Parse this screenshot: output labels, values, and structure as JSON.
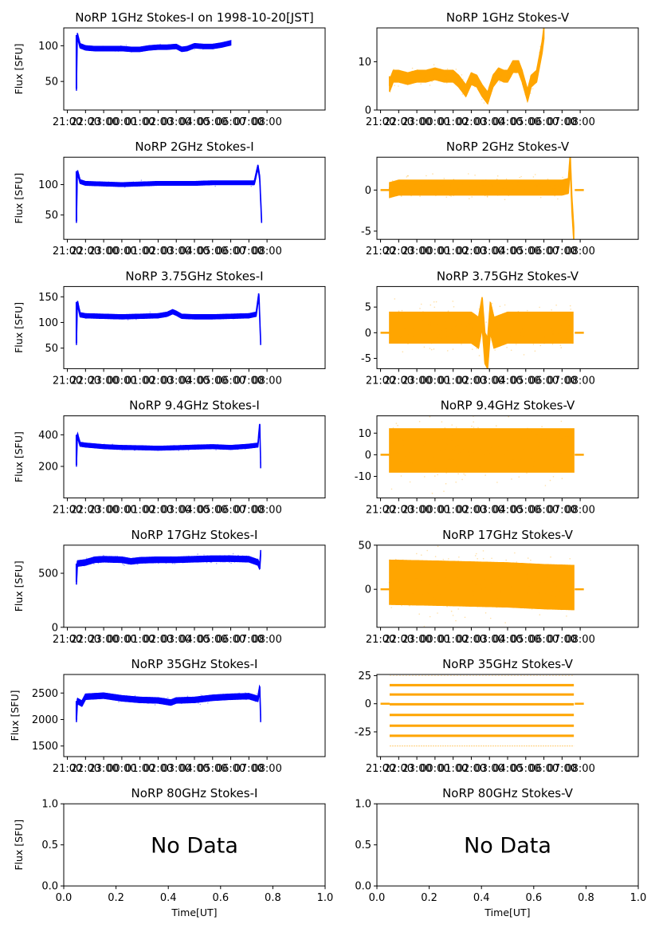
{
  "figure": {
    "date_label": "1998-10-20[JST]",
    "ylabel": "Flux [SFU]",
    "xlabel": "Time[UT]",
    "no_data_text": "No Data",
    "colors": {
      "stokes_i": "#0000ff",
      "stokes_v": "#ffa500"
    }
  },
  "chart_data": [
    {
      "type": "scatter",
      "panel": "1GHz-I",
      "title": "NoRP 1GHz Stokes-I on 1998-10-20[JST]",
      "ylabel": "Flux [SFU]",
      "xlabel": "",
      "xticks": [
        "21:00",
        "22:00",
        "23:00",
        "00:00",
        "01:00",
        "02:00",
        "03:00",
        "04:00",
        "05:00",
        "06:00",
        "07:00",
        "08:00"
      ],
      "xlim_hours": [
        -3.2,
        11.2
      ],
      "ylim": [
        10,
        125
      ],
      "yticks": [
        50,
        100
      ],
      "series": [
        {
          "name": "Stokes-I",
          "color": "#0000ff",
          "x_hours": [
            -2.5,
            -2.45,
            -2.3,
            -2.0,
            -1.5,
            -1.0,
            -0.5,
            0.0,
            0.5,
            1.0,
            1.5,
            2.0,
            2.5,
            3.0,
            3.3,
            3.6,
            4.0,
            4.5,
            5.0,
            5.5,
            6.0
          ],
          "y": [
            40,
            115,
            100,
            97,
            96,
            96,
            96,
            96,
            95,
            95,
            97,
            98,
            98,
            99,
            95,
            96,
            100,
            99,
            99,
            101,
            104
          ],
          "spread": 3
        }
      ]
    },
    {
      "type": "scatter",
      "panel": "1GHz-V",
      "title": "NoRP 1GHz Stokes-V",
      "ylabel": "",
      "xlabel": "",
      "xticks": [
        "21:00",
        "22:00",
        "23:00",
        "00:00",
        "01:00",
        "02:00",
        "03:00",
        "04:00",
        "05:00",
        "06:00",
        "07:00",
        "08:00"
      ],
      "xlim_hours": [
        -3.2,
        11.2
      ],
      "ylim": [
        0,
        17
      ],
      "yticks": [
        0,
        10
      ],
      "series": [
        {
          "name": "Stokes-V",
          "color": "#ffa500",
          "x_hours": [
            -2.5,
            -2.3,
            -2.0,
            -1.5,
            -1.0,
            -0.5,
            0.0,
            0.5,
            1.0,
            1.3,
            1.7,
            2.0,
            2.3,
            2.6,
            2.9,
            3.2,
            3.5,
            3.8,
            4.0,
            4.3,
            4.6,
            4.8,
            5.1,
            5.3,
            5.6,
            5.9,
            6.0
          ],
          "y": [
            5,
            7,
            7,
            6.5,
            7,
            7,
            7.5,
            7,
            7,
            6,
            4,
            6.5,
            6,
            4,
            2.5,
            6,
            7.5,
            7,
            7,
            9,
            9,
            7,
            3,
            6,
            7,
            13,
            16
          ],
          "spread": 1.2
        }
      ]
    },
    {
      "type": "scatter",
      "panel": "2GHz-I",
      "title": "NoRP 2GHz Stokes-I",
      "ylabel": "Flux [SFU]",
      "xlabel": "",
      "xticks": [
        "21:00",
        "22:00",
        "23:00",
        "00:00",
        "01:00",
        "02:00",
        "03:00",
        "04:00",
        "05:00",
        "06:00",
        "07:00",
        "08:00"
      ],
      "xlim_hours": [
        -3.2,
        11.2
      ],
      "ylim": [
        10,
        145
      ],
      "yticks": [
        50,
        100
      ],
      "series": [
        {
          "name": "Stokes-I",
          "color": "#0000ff",
          "x_hours": [
            -2.5,
            -2.45,
            -2.3,
            -2.0,
            -1.0,
            0.0,
            1.0,
            2.0,
            3.0,
            4.0,
            5.0,
            6.0,
            7.0,
            7.3,
            7.5,
            7.6,
            7.7
          ],
          "y": [
            40,
            122,
            105,
            102,
            101,
            100,
            101,
            102,
            102,
            102,
            103,
            103,
            103,
            103,
            130,
            110,
            40
          ],
          "spread": 3
        }
      ]
    },
    {
      "type": "scatter",
      "panel": "2GHz-V",
      "title": "NoRP 2GHz Stokes-V",
      "ylabel": "",
      "xlabel": "",
      "xticks": [
        "21:00",
        "22:00",
        "23:00",
        "00:00",
        "01:00",
        "02:00",
        "03:00",
        "04:00",
        "05:00",
        "06:00",
        "07:00",
        "08:00"
      ],
      "xlim_hours": [
        -3.2,
        11.2
      ],
      "ylim": [
        -6,
        4
      ],
      "yticks": [
        -5,
        0
      ],
      "series": [
        {
          "name": "Stokes-V",
          "color": "#ffa500",
          "x_hours": [
            -2.5,
            -2.0,
            -1.0,
            0.0,
            1.0,
            2.0,
            3.0,
            4.0,
            5.0,
            6.0,
            7.0,
            7.35,
            7.45,
            7.55,
            7.65
          ],
          "y": [
            0,
            0.3,
            0.3,
            0.3,
            0.3,
            0.3,
            0.3,
            0.3,
            0.3,
            0.3,
            0.3,
            0.5,
            3.5,
            -2,
            -5.5
          ],
          "spread": 0.9,
          "zero_segments": [
            [
              -3.0,
              -2.5
            ],
            [
              7.7,
              8.2
            ]
          ]
        }
      ]
    },
    {
      "type": "scatter",
      "panel": "3.75GHz-I",
      "title": "NoRP 3.75GHz Stokes-I",
      "ylabel": "Flux [SFU]",
      "xlabel": "",
      "xticks": [
        "21:00",
        "22:00",
        "23:00",
        "00:00",
        "01:00",
        "02:00",
        "03:00",
        "04:00",
        "05:00",
        "06:00",
        "07:00",
        "08:00"
      ],
      "xlim_hours": [
        -3.2,
        11.2
      ],
      "ylim": [
        10,
        170
      ],
      "yticks": [
        50,
        100,
        150
      ],
      "series": [
        {
          "name": "Stokes-I",
          "color": "#0000ff",
          "x_hours": [
            -2.5,
            -2.45,
            -2.3,
            -2.0,
            -1.0,
            0.0,
            1.0,
            2.0,
            2.5,
            2.8,
            3.0,
            3.3,
            4.0,
            5.0,
            6.0,
            7.0,
            7.4,
            7.55,
            7.65
          ],
          "y": [
            60,
            140,
            115,
            113,
            112,
            111,
            112,
            113,
            116,
            121,
            118,
            112,
            111,
            111,
            112,
            113,
            116,
            155,
            60
          ],
          "spread": 4
        }
      ]
    },
    {
      "type": "scatter",
      "panel": "3.75GHz-V",
      "title": "NoRP 3.75GHz Stokes-V",
      "ylabel": "",
      "xlabel": "",
      "xticks": [
        "21:00",
        "22:00",
        "23:00",
        "00:00",
        "01:00",
        "02:00",
        "03:00",
        "04:00",
        "05:00",
        "06:00",
        "07:00",
        "08:00"
      ],
      "xlim_hours": [
        -3.2,
        11.2
      ],
      "ylim": [
        -7,
        9
      ],
      "yticks": [
        -5,
        0,
        5
      ],
      "series": [
        {
          "name": "Stokes-V",
          "color": "#ffa500",
          "x_hours": [
            -2.5,
            -1.0,
            0.0,
            1.0,
            2.0,
            2.4,
            2.6,
            2.75,
            2.9,
            3.05,
            3.25,
            4.0,
            5.0,
            6.0,
            7.0,
            7.6
          ],
          "y": [
            1,
            1,
            1,
            1,
            1,
            0,
            4,
            -3,
            -4,
            3,
            0,
            1,
            1,
            1,
            1,
            1
          ],
          "spread": 3,
          "zero_segments": [
            [
              -3.0,
              -2.5
            ],
            [
              7.7,
              8.2
            ]
          ]
        }
      ]
    },
    {
      "type": "scatter",
      "panel": "9.4GHz-I",
      "title": "NoRP 9.4GHz Stokes-I",
      "ylabel": "Flux [SFU]",
      "xlabel": "",
      "xticks": [
        "21:00",
        "22:00",
        "23:00",
        "00:00",
        "01:00",
        "02:00",
        "03:00",
        "04:00",
        "05:00",
        "06:00",
        "07:00",
        "08:00"
      ],
      "xlim_hours": [
        -3.2,
        11.2
      ],
      "ylim": [
        0,
        520
      ],
      "yticks": [
        200,
        400
      ],
      "series": [
        {
          "name": "Stokes-I",
          "color": "#0000ff",
          "x_hours": [
            -2.5,
            -2.45,
            -2.3,
            -2.0,
            -1.0,
            0.0,
            1.0,
            2.0,
            3.0,
            4.0,
            5.0,
            6.0,
            7.0,
            7.5,
            7.6,
            7.65
          ],
          "y": [
            210,
            400,
            340,
            335,
            325,
            320,
            318,
            315,
            318,
            322,
            325,
            320,
            328,
            335,
            470,
            200
          ],
          "spread": 12
        }
      ]
    },
    {
      "type": "scatter",
      "panel": "9.4GHz-V",
      "title": "NoRP 9.4GHz Stokes-V",
      "ylabel": "",
      "xlabel": "",
      "xticks": [
        "21:00",
        "22:00",
        "23:00",
        "00:00",
        "01:00",
        "02:00",
        "03:00",
        "04:00",
        "05:00",
        "06:00",
        "07:00",
        "08:00"
      ],
      "xlim_hours": [
        -3.2,
        11.2
      ],
      "ylim": [
        -20,
        18
      ],
      "yticks": [
        -10,
        0,
        10
      ],
      "series": [
        {
          "name": "Stokes-V",
          "color": "#ffa500",
          "x_hours": [
            -2.5,
            7.65
          ],
          "y": [
            2,
            2
          ],
          "spread": 10,
          "zero_segments": [
            [
              -3.0,
              -2.5
            ],
            [
              7.7,
              8.2
            ]
          ]
        }
      ]
    },
    {
      "type": "scatter",
      "panel": "17GHz-I",
      "title": "NoRP 17GHz Stokes-I",
      "ylabel": "Flux [SFU]",
      "xlabel": "",
      "xticks": [
        "21:00",
        "22:00",
        "23:00",
        "00:00",
        "01:00",
        "02:00",
        "03:00",
        "04:00",
        "05:00",
        "06:00",
        "07:00",
        "08:00"
      ],
      "xlim_hours": [
        -3.2,
        11.2
      ],
      "ylim": [
        0,
        760
      ],
      "yticks": [
        0,
        500
      ],
      "series": [
        {
          "name": "Stokes-I",
          "color": "#0000ff",
          "x_hours": [
            -2.5,
            -2.45,
            -2.0,
            -1.5,
            -1.0,
            0.0,
            0.5,
            1.0,
            2.0,
            3.0,
            4.0,
            5.0,
            6.0,
            7.0,
            7.5,
            7.6,
            7.65
          ],
          "y": [
            420,
            590,
            600,
            625,
            630,
            625,
            610,
            620,
            625,
            625,
            630,
            635,
            635,
            630,
            600,
            560,
            690
          ],
          "spread": 25
        }
      ]
    },
    {
      "type": "scatter",
      "panel": "17GHz-V",
      "title": "NoRP 17GHz Stokes-V",
      "ylabel": "",
      "xlabel": "",
      "xticks": [
        "21:00",
        "22:00",
        "23:00",
        "00:00",
        "01:00",
        "02:00",
        "03:00",
        "04:00",
        "05:00",
        "06:00",
        "07:00",
        "08:00"
      ],
      "xlim_hours": [
        -3.2,
        11.2
      ],
      "ylim": [
        -43,
        50
      ],
      "yticks": [
        0,
        50
      ],
      "series": [
        {
          "name": "Stokes-V",
          "color": "#ffa500",
          "x_hours": [
            -2.5,
            0.0,
            2.0,
            4.0,
            6.0,
            7.65
          ],
          "y": [
            8,
            7,
            6,
            5,
            3,
            2
          ],
          "spread": 25,
          "zero_segments": [
            [
              -3.0,
              -2.5
            ],
            [
              7.7,
              8.2
            ]
          ]
        }
      ]
    },
    {
      "type": "scatter",
      "panel": "35GHz-I",
      "title": "NoRP 35GHz Stokes-I",
      "ylabel": "Flux [SFU]",
      "xlabel": "",
      "xticks": [
        "21:00",
        "22:00",
        "23:00",
        "00:00",
        "01:00",
        "02:00",
        "03:00",
        "04:00",
        "05:00",
        "06:00",
        "07:00",
        "08:00"
      ],
      "xlim_hours": [
        -3.2,
        11.2
      ],
      "ylim": [
        1300,
        2850
      ],
      "yticks": [
        1500,
        2000,
        2500
      ],
      "series": [
        {
          "name": "Stokes-I",
          "color": "#0000ff",
          "x_hours": [
            -2.5,
            -2.45,
            -2.2,
            -2.0,
            -1.5,
            -1.0,
            0.0,
            1.0,
            2.0,
            2.7,
            3.0,
            4.0,
            5.0,
            6.0,
            7.0,
            7.5,
            7.6,
            7.65
          ],
          "y": [
            2000,
            2350,
            2300,
            2430,
            2440,
            2450,
            2400,
            2370,
            2360,
            2320,
            2360,
            2370,
            2410,
            2430,
            2440,
            2390,
            2600,
            2000
          ],
          "spread": 50
        }
      ]
    },
    {
      "type": "scatter",
      "panel": "35GHz-V",
      "title": "NoRP 35GHz Stokes-V",
      "ylabel": "",
      "xlabel": "",
      "xticks": [
        "21:00",
        "22:00",
        "23:00",
        "00:00",
        "01:00",
        "02:00",
        "03:00",
        "04:00",
        "05:00",
        "06:00",
        "07:00",
        "08:00"
      ],
      "xlim_hours": [
        -3.2,
        11.2
      ],
      "ylim": [
        -47,
        26
      ],
      "yticks": [
        -25,
        0,
        25
      ],
      "series": [
        {
          "name": "Stokes-V",
          "color": "#ffa500",
          "levels": [
            16.5,
            8.2,
            -0.5,
            -10,
            -19.5,
            -28.5,
            -37.5
          ],
          "faint_levels": [
            -37.5,
            25
          ],
          "x_range_hours": [
            -2.5,
            7.65
          ],
          "zero_segments": [
            [
              -3.0,
              -2.5
            ],
            [
              7.7,
              8.2
            ]
          ]
        }
      ]
    },
    {
      "type": "scatter",
      "panel": "80GHz-I",
      "title": "NoRP 80GHz Stokes-I",
      "ylabel": "Flux [SFU]",
      "xlabel": "Time[UT]",
      "xticks": [
        "0.0",
        "0.2",
        "0.4",
        "0.6",
        "0.8",
        "1.0"
      ],
      "xlim": [
        0,
        1
      ],
      "ylim": [
        0,
        1
      ],
      "yticks": [
        "0.0",
        "0.5",
        "1.0"
      ],
      "no_data": true,
      "annotation": "No Data",
      "series": []
    },
    {
      "type": "scatter",
      "panel": "80GHz-V",
      "title": "NoRP 80GHz Stokes-V",
      "ylabel": "",
      "xlabel": "Time[UT]",
      "xticks": [
        "0.0",
        "0.2",
        "0.4",
        "0.6",
        "0.8",
        "1.0"
      ],
      "xlim": [
        0,
        1
      ],
      "ylim": [
        0,
        1
      ],
      "yticks": [
        "0.0",
        "0.5",
        "1.0"
      ],
      "no_data": true,
      "annotation": "No Data",
      "series": []
    }
  ]
}
